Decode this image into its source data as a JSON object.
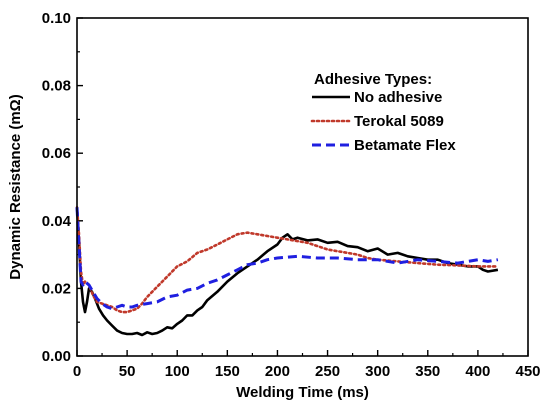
{
  "chart_data": {
    "type": "line",
    "xlabel": "Welding Time (ms)",
    "ylabel": "Dynamic Resistance (mΩ)",
    "xlim": [
      0,
      450
    ],
    "ylim": [
      0.0,
      0.1
    ],
    "xticks": [
      "0",
      "50",
      "100",
      "150",
      "200",
      "250",
      "300",
      "350",
      "400",
      "450"
    ],
    "yticks": [
      "0.00",
      "0.02",
      "0.04",
      "0.06",
      "0.08",
      "0.10"
    ],
    "legend_title": "Adhesive Types:",
    "legend_position": "top-right",
    "grid": false,
    "series": [
      {
        "name": "No adhesive",
        "color": "#000000",
        "style": "solid",
        "x": [
          0,
          2,
          4,
          6,
          8,
          10,
          12,
          15,
          18,
          22,
          26,
          30,
          35,
          40,
          45,
          50,
          55,
          60,
          65,
          70,
          75,
          80,
          85,
          90,
          95,
          100,
          105,
          110,
          115,
          120,
          125,
          130,
          140,
          150,
          160,
          170,
          180,
          190,
          200,
          205,
          210,
          215,
          220,
          230,
          240,
          250,
          260,
          270,
          280,
          290,
          300,
          310,
          320,
          330,
          340,
          350,
          360,
          370,
          380,
          390,
          400,
          405,
          410,
          420
        ],
        "y": [
          0.044,
          0.034,
          0.022,
          0.016,
          0.013,
          0.016,
          0.02,
          0.019,
          0.017,
          0.014,
          0.012,
          0.0105,
          0.009,
          0.0075,
          0.0068,
          0.0065,
          0.0065,
          0.0068,
          0.0062,
          0.007,
          0.0065,
          0.0068,
          0.0075,
          0.0085,
          0.0082,
          0.0095,
          0.0105,
          0.012,
          0.012,
          0.0135,
          0.0145,
          0.0165,
          0.019,
          0.022,
          0.0245,
          0.0265,
          0.0285,
          0.031,
          0.033,
          0.035,
          0.036,
          0.0345,
          0.035,
          0.0342,
          0.0345,
          0.0335,
          0.0338,
          0.0325,
          0.0322,
          0.031,
          0.0318,
          0.03,
          0.0305,
          0.0295,
          0.029,
          0.0285,
          0.0285,
          0.0275,
          0.027,
          0.0265,
          0.0265,
          0.0255,
          0.025,
          0.0255
        ]
      },
      {
        "name": "Terokal 5089",
        "color": "#c0392b",
        "style": "dotted",
        "x": [
          0,
          2,
          4,
          6,
          8,
          12,
          16,
          20,
          25,
          30,
          35,
          40,
          45,
          50,
          55,
          60,
          65,
          70,
          80,
          90,
          100,
          110,
          120,
          130,
          140,
          150,
          160,
          170,
          180,
          190,
          200,
          210,
          220,
          230,
          240,
          250,
          260,
          270,
          280,
          290,
          300,
          320,
          340,
          360,
          380,
          400,
          410,
          420
        ],
        "y": [
          0.044,
          0.036,
          0.025,
          0.021,
          0.022,
          0.021,
          0.018,
          0.016,
          0.0155,
          0.015,
          0.0145,
          0.0135,
          0.013,
          0.013,
          0.0135,
          0.014,
          0.0155,
          0.0175,
          0.0205,
          0.0235,
          0.0265,
          0.028,
          0.0305,
          0.0315,
          0.033,
          0.0345,
          0.036,
          0.0365,
          0.036,
          0.0355,
          0.035,
          0.0345,
          0.034,
          0.0335,
          0.0325,
          0.0315,
          0.031,
          0.0305,
          0.03,
          0.029,
          0.0285,
          0.028,
          0.0275,
          0.027,
          0.0268,
          0.0265,
          0.0265,
          0.0265
        ]
      },
      {
        "name": "Betamate Flex",
        "color": "#1f1fe0",
        "style": "dashed",
        "x": [
          0,
          2,
          4,
          6,
          8,
          12,
          16,
          20,
          25,
          30,
          35,
          40,
          45,
          50,
          55,
          60,
          70,
          80,
          90,
          100,
          110,
          120,
          130,
          140,
          150,
          160,
          170,
          180,
          190,
          200,
          220,
          240,
          260,
          280,
          300,
          320,
          340,
          360,
          380,
          400,
          410,
          420
        ],
        "y": [
          0.044,
          0.033,
          0.022,
          0.021,
          0.022,
          0.021,
          0.019,
          0.017,
          0.0155,
          0.0145,
          0.014,
          0.0145,
          0.015,
          0.0145,
          0.0145,
          0.015,
          0.0155,
          0.016,
          0.0175,
          0.018,
          0.0195,
          0.02,
          0.0215,
          0.0225,
          0.024,
          0.0255,
          0.027,
          0.0275,
          0.0285,
          0.029,
          0.0295,
          0.029,
          0.029,
          0.0285,
          0.0285,
          0.0275,
          0.0285,
          0.028,
          0.0275,
          0.0285,
          0.028,
          0.0285
        ]
      }
    ]
  }
}
